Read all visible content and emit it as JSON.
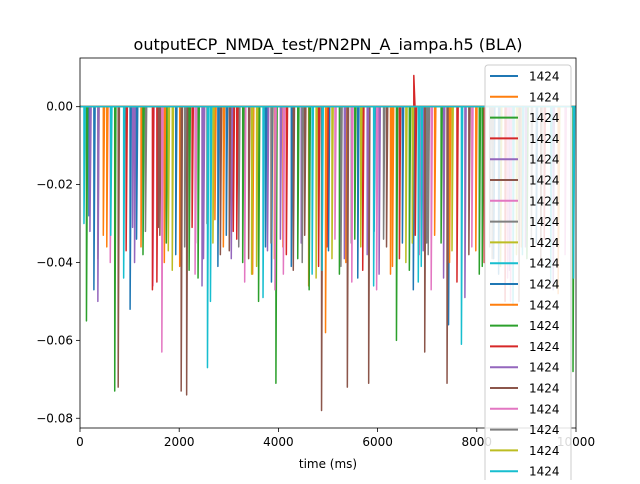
{
  "chart_data": {
    "type": "line",
    "title": "outputECP_NMDA_test/PN2PN_A_iampa.h5 (BLA)",
    "xlabel": "time (ms)",
    "ylabel": "",
    "xlim": [
      0,
      10000
    ],
    "ylim": [
      -0.0825,
      0.0125
    ],
    "xticks": [
      0,
      2000,
      4000,
      6000,
      8000,
      10000
    ],
    "xtick_labels": [
      "0",
      "2000",
      "4000",
      "6000",
      "8000",
      "10000"
    ],
    "yticks": [
      0.0,
      -0.02,
      -0.04,
      -0.06,
      -0.08
    ],
    "ytick_labels": [
      "0.00",
      "−0.02",
      "−0.04",
      "−0.06",
      "−0.08"
    ],
    "grid": false,
    "legend_position": "top-right",
    "baseline": 0.0,
    "colors": [
      "#1f77b4",
      "#ff7f0e",
      "#2ca02c",
      "#d62728",
      "#9467bd",
      "#8c564b",
      "#e377c2",
      "#7f7f7f",
      "#bcbd22",
      "#17becf"
    ],
    "series": [
      {
        "name": "1424",
        "color": "#1f77b4",
        "spikes": [
          [
            180,
            -0.028
          ],
          [
            1010,
            -0.052
          ],
          [
            1930,
            -0.038
          ],
          [
            2950,
            -0.033
          ],
          [
            3860,
            -0.045
          ],
          [
            4260,
            -0.041
          ],
          [
            5010,
            -0.037
          ],
          [
            5930,
            -0.032
          ],
          [
            6720,
            -0.047
          ],
          [
            7430,
            -0.056
          ],
          [
            8340,
            -0.039
          ],
          [
            9200,
            -0.035
          ]
        ]
      },
      {
        "name": "1424",
        "color": "#ff7f0e",
        "spikes": [
          [
            470,
            -0.033
          ],
          [
            1230,
            -0.036
          ],
          [
            2010,
            -0.041
          ],
          [
            2720,
            -0.029
          ],
          [
            3480,
            -0.043
          ],
          [
            4090,
            -0.036
          ],
          [
            4610,
            -0.046
          ],
          [
            5360,
            -0.04
          ],
          [
            6260,
            -0.043
          ],
          [
            7150,
            -0.033
          ],
          [
            7980,
            -0.037
          ],
          [
            8900,
            -0.036
          ]
        ]
      },
      {
        "name": "1424",
        "color": "#2ca02c",
        "spikes": [
          [
            130,
            -0.055
          ],
          [
            700,
            -0.073
          ],
          [
            1740,
            -0.035
          ],
          [
            2380,
            -0.044
          ],
          [
            3600,
            -0.05
          ],
          [
            3950,
            -0.071
          ],
          [
            4620,
            -0.047
          ],
          [
            5540,
            -0.034
          ],
          [
            6380,
            -0.06
          ],
          [
            7280,
            -0.035
          ],
          [
            8110,
            -0.041
          ],
          [
            9940,
            -0.068
          ]
        ]
      },
      {
        "name": "1424",
        "color": "#d62728",
        "spikes": [
          [
            930,
            -0.037
          ],
          [
            1550,
            -0.045
          ],
          [
            2260,
            -0.031
          ],
          [
            3090,
            -0.032
          ],
          [
            4160,
            -0.038
          ],
          [
            4980,
            -0.036
          ],
          [
            5700,
            -0.042
          ],
          [
            6730,
            0.008
          ],
          [
            6760,
            -0.033
          ],
          [
            7600,
            -0.045
          ],
          [
            8570,
            -0.05
          ],
          [
            9360,
            -0.034
          ]
        ]
      },
      {
        "name": "1424",
        "color": "#9467bd",
        "spikes": [
          [
            200,
            -0.032
          ],
          [
            1100,
            -0.04
          ],
          [
            2460,
            -0.046
          ],
          [
            3050,
            -0.039
          ],
          [
            3780,
            -0.037
          ],
          [
            4460,
            -0.035
          ],
          [
            5330,
            -0.039
          ],
          [
            6030,
            -0.043
          ],
          [
            6920,
            -0.037
          ],
          [
            7760,
            -0.049
          ],
          [
            8660,
            -0.042
          ],
          [
            9540,
            -0.047
          ]
        ]
      },
      {
        "name": "1424",
        "color": "#8c564b",
        "spikes": [
          [
            770,
            -0.072
          ],
          [
            1610,
            -0.033
          ],
          [
            2040,
            -0.073
          ],
          [
            2150,
            -0.074
          ],
          [
            2830,
            -0.038
          ],
          [
            3400,
            -0.039
          ],
          [
            4300,
            -0.042
          ],
          [
            4870,
            -0.078
          ],
          [
            5390,
            -0.072
          ],
          [
            5820,
            -0.071
          ],
          [
            6950,
            -0.063
          ],
          [
            7400,
            -0.071
          ],
          [
            8850,
            -0.05
          ]
        ]
      },
      {
        "name": "1424",
        "color": "#e377c2",
        "spikes": [
          [
            610,
            -0.04
          ],
          [
            1470,
            -0.046
          ],
          [
            2330,
            -0.035
          ],
          [
            3320,
            -0.045
          ],
          [
            4100,
            -0.043
          ],
          [
            5140,
            -0.034
          ],
          [
            5980,
            -0.047
          ],
          [
            6840,
            -0.038
          ],
          [
            7900,
            -0.036
          ],
          [
            8680,
            -0.05
          ],
          [
            9780,
            -0.038
          ]
        ]
      },
      {
        "name": "1424",
        "color": "#7f7f7f",
        "spikes": [
          [
            1320,
            -0.032
          ],
          [
            2560,
            -0.03
          ],
          [
            3200,
            -0.036
          ],
          [
            4480,
            -0.04
          ],
          [
            5470,
            -0.035
          ],
          [
            6120,
            -0.034
          ],
          [
            7020,
            -0.038
          ],
          [
            8260,
            -0.036
          ],
          [
            9100,
            -0.034
          ]
        ]
      },
      {
        "name": "1424",
        "color": "#bcbd22",
        "spikes": [
          [
            360,
            -0.039
          ],
          [
            1860,
            -0.042
          ],
          [
            2680,
            -0.035
          ],
          [
            3560,
            -0.041
          ],
          [
            4760,
            -0.044
          ],
          [
            5660,
            -0.036
          ],
          [
            6570,
            -0.04
          ],
          [
            7500,
            -0.037
          ],
          [
            8480,
            -0.041
          ],
          [
            9650,
            -0.036
          ]
        ]
      },
      {
        "name": "1424",
        "color": "#17becf",
        "spikes": [
          [
            80,
            -0.03
          ],
          [
            880,
            -0.044
          ],
          [
            2570,
            -0.067
          ],
          [
            3690,
            -0.049
          ],
          [
            4880,
            -0.042
          ],
          [
            5920,
            -0.046
          ],
          [
            6880,
            -0.041
          ],
          [
            7690,
            -0.061
          ],
          [
            8730,
            -0.051
          ],
          [
            9490,
            -0.045
          ],
          [
            9950,
            -0.044
          ]
        ]
      },
      {
        "name": "1424",
        "color": "#1f77b4",
        "spikes": [
          [
            280,
            -0.047
          ],
          [
            1140,
            -0.034
          ],
          [
            2780,
            -0.041
          ],
          [
            3740,
            -0.036
          ],
          [
            5600,
            -0.044
          ],
          [
            6500,
            -0.035
          ],
          [
            8440,
            -0.043
          ]
        ]
      },
      {
        "name": "1424",
        "color": "#ff7f0e",
        "spikes": [
          [
            540,
            -0.036
          ],
          [
            1700,
            -0.04
          ],
          [
            2890,
            -0.036
          ],
          [
            3920,
            -0.039
          ],
          [
            4950,
            -0.058
          ],
          [
            6300,
            -0.041
          ],
          [
            7450,
            -0.04
          ],
          [
            9640,
            -0.048
          ]
        ]
      },
      {
        "name": "1424",
        "color": "#2ca02c",
        "spikes": [
          [
            1270,
            -0.038
          ],
          [
            2200,
            -0.042
          ],
          [
            3280,
            -0.04
          ],
          [
            4390,
            -0.039
          ],
          [
            5230,
            -0.043
          ],
          [
            6640,
            -0.042
          ],
          [
            8050,
            -0.043
          ],
          [
            9010,
            -0.039
          ]
        ]
      },
      {
        "name": "1424",
        "color": "#d62728",
        "spikes": [
          [
            1460,
            -0.047
          ],
          [
            3160,
            -0.034
          ],
          [
            4810,
            -0.041
          ],
          [
            6440,
            -0.039
          ],
          [
            8150,
            -0.04
          ]
        ]
      },
      {
        "name": "1424",
        "color": "#9467bd",
        "spikes": [
          [
            360,
            -0.05
          ],
          [
            1060,
            -0.031
          ],
          [
            2490,
            -0.039
          ],
          [
            4040,
            -0.034
          ],
          [
            5790,
            -0.038
          ],
          [
            7330,
            -0.044
          ],
          [
            8980,
            -0.036
          ]
        ]
      },
      {
        "name": "1424",
        "color": "#8c564b",
        "spikes": [
          [
            1580,
            -0.031
          ],
          [
            3010,
            -0.037
          ],
          [
            4530,
            -0.033
          ],
          [
            6180,
            -0.036
          ],
          [
            7840,
            -0.038
          ],
          [
            9290,
            -0.04
          ]
        ]
      },
      {
        "name": "1424",
        "color": "#e377c2",
        "spikes": [
          [
            1650,
            -0.063
          ],
          [
            2320,
            -0.043
          ],
          [
            3930,
            -0.047
          ],
          [
            5480,
            -0.045
          ],
          [
            7080,
            -0.047
          ],
          [
            8620,
            -0.044
          ]
        ]
      },
      {
        "name": "1424",
        "color": "#7f7f7f",
        "spikes": [
          [
            2110,
            -0.036
          ],
          [
            3850,
            -0.035
          ],
          [
            5260,
            -0.041
          ],
          [
            6990,
            -0.035
          ],
          [
            8310,
            -0.039
          ]
        ]
      },
      {
        "name": "1424",
        "color": "#bcbd22",
        "spikes": [
          [
            1780,
            -0.037
          ],
          [
            3460,
            -0.043
          ],
          [
            5080,
            -0.039
          ],
          [
            6700,
            -0.035
          ],
          [
            8800,
            -0.038
          ]
        ]
      },
      {
        "name": "1424",
        "color": "#17becf",
        "spikes": [
          [
            620,
            -0.033
          ],
          [
            2630,
            -0.05
          ],
          [
            4680,
            -0.043
          ],
          [
            6820,
            -0.045
          ],
          [
            8920,
            -0.038
          ]
        ]
      }
    ]
  }
}
